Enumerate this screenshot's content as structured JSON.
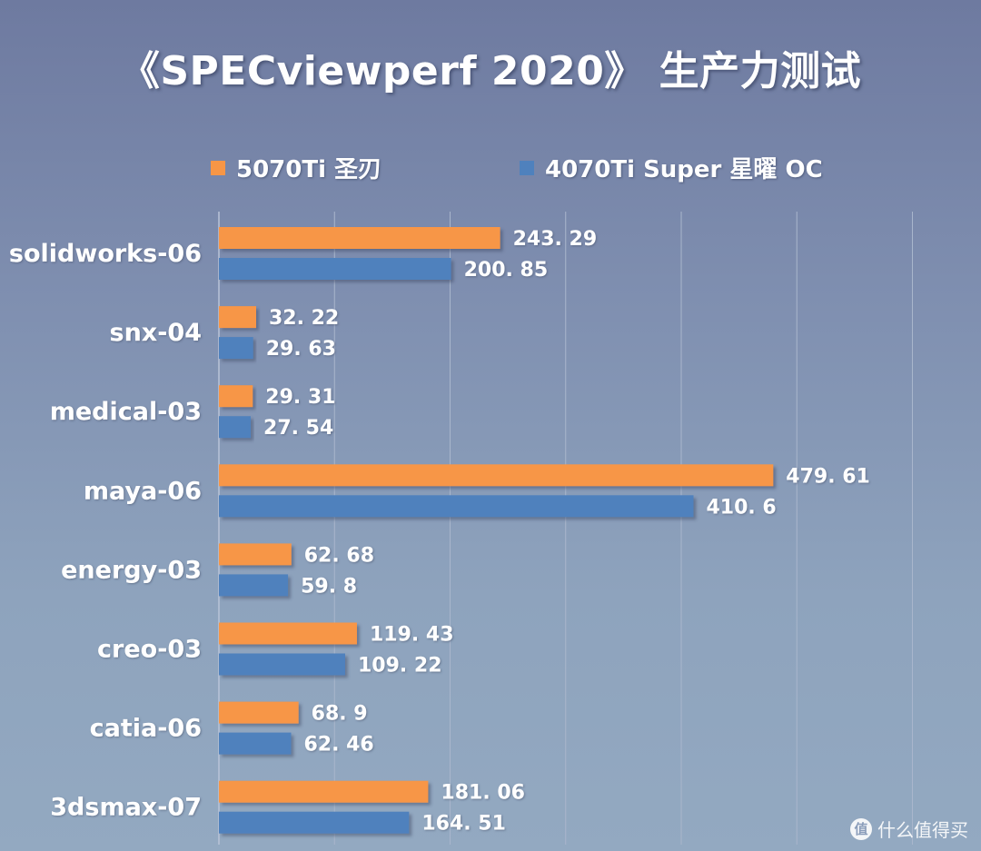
{
  "chart_data": {
    "type": "bar",
    "orientation": "horizontal",
    "title": "《SPECviewperf 2020》 生产力测试",
    "categories": [
      "solidworks-06",
      "snx-04",
      "medical-03",
      "maya-06",
      "energy-03",
      "creo-03",
      "catia-06",
      "3dsmax-07"
    ],
    "series": [
      {
        "name": "5070Ti 圣刃",
        "color": "#f79646",
        "values": [
          243.29,
          32.22,
          29.31,
          479.61,
          62.68,
          119.43,
          68.9,
          181.06
        ],
        "labels": [
          "243. 29",
          "32. 22",
          "29. 31",
          "479. 61",
          "62. 68",
          "119. 43",
          "68. 9",
          "181. 06"
        ]
      },
      {
        "name": "4070Ti Super 星曜 OC",
        "color": "#4f81bd",
        "values": [
          200.85,
          29.63,
          27.54,
          410.6,
          59.8,
          109.22,
          62.46,
          164.51
        ],
        "labels": [
          "200. 85",
          "29. 63",
          "27. 54",
          "410. 6",
          "59. 8",
          "109. 22",
          "62. 46",
          "164. 51"
        ]
      }
    ],
    "xlim": [
      0,
      600
    ],
    "grid": true,
    "legend_position": "top"
  },
  "watermark": {
    "glyph": "值",
    "text": "什么值得买"
  }
}
